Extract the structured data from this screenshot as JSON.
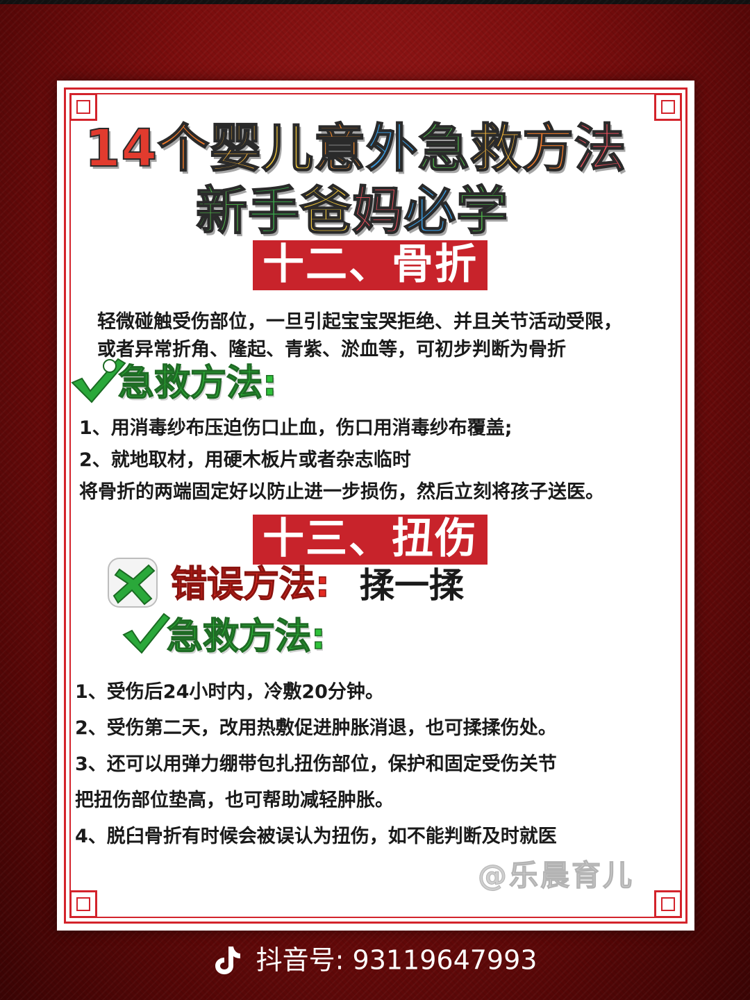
{
  "title": {
    "line1": [
      {
        "text": "14",
        "color": "#e23b2e"
      },
      {
        "text": "个",
        "color": "#ef7a2a"
      },
      {
        "text": "婴",
        "color": "#f2b13a"
      },
      {
        "text": "儿",
        "color": "#f0c63c"
      },
      {
        "text": "意",
        "color": "#ef8a2e"
      },
      {
        "text": "外",
        "color": "#3a9be0"
      },
      {
        "text": "急",
        "color": "#4fb84a"
      },
      {
        "text": "救",
        "color": "#f0b23a"
      },
      {
        "text": "方",
        "color": "#ef7a2a"
      },
      {
        "text": "法",
        "color": "#ea4f5c"
      }
    ],
    "line2": [
      {
        "text": "新",
        "color": "#4fb84a"
      },
      {
        "text": "手",
        "color": "#3aa84a"
      },
      {
        "text": "爸",
        "color": "#f0c63c"
      },
      {
        "text": "妈",
        "color": "#ea4f5c"
      },
      {
        "text": "必",
        "color": "#3a9be0"
      },
      {
        "text": "学",
        "color": "#4fb84a"
      }
    ]
  },
  "section12": {
    "header": "十二、骨折",
    "description_lines": [
      "轻微碰触受伤部位，一旦引起宝宝哭拒绝、并且关节活动受限，",
      "或者异常折角、隆起、青紫、淤血等，可初步判断为骨折"
    ],
    "method_label": "急救方法:",
    "steps": [
      "1、用消毒纱布压迫伤口止血，伤口用消毒纱布覆盖;",
      "2、就地取材，用硬木板片或者杂志临时",
      "将骨折的两端固定好以防止进一步损伤，然后立刻将孩子送医。"
    ]
  },
  "section13": {
    "header": "十三、扭伤",
    "wrong_label": "错误方法:",
    "wrong_value": "揉一揉",
    "method_label": "急救方法:",
    "steps": [
      "1、受伤后24小时内，冷敷20分钟。",
      "2、受伤第二天，改用热敷促进肿胀消退，也可揉揉伤处。",
      "3、还可以用弹力绷带包扎扭伤部位，保护和固定受伤关节",
      "把扭伤部位垫高，也可帮助减轻肿胀。",
      "4、脱臼骨折有时候会被误认为扭伤，如不能判断及时就医"
    ]
  },
  "watermark": "@乐晨育儿",
  "footer": {
    "icon": "tiktok-icon",
    "label": "抖音号:",
    "id": "93119647993"
  },
  "colors": {
    "accent_red": "#c8232b",
    "method_green": "#2fc23a",
    "wrong_red": "#e32a22",
    "background": "#7a0d0d"
  }
}
